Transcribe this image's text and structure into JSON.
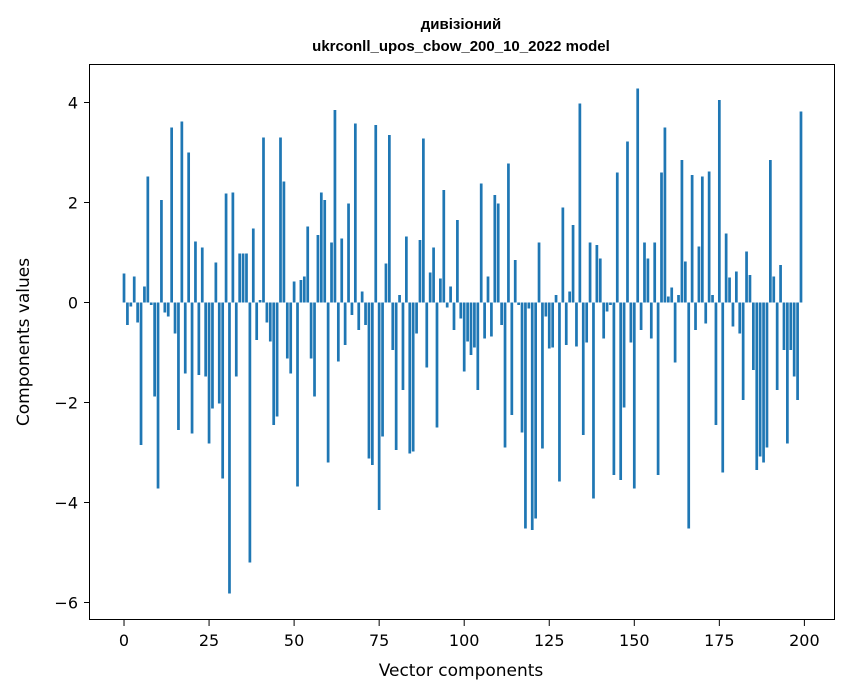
{
  "chart_data": {
    "type": "bar",
    "title_lines": [
      "дивізіоний",
      "ukrconll_upos_cbow_200_10_2022 model"
    ],
    "xlabel": "Vector components",
    "ylabel": "Components values",
    "xlim": [
      -10,
      209
    ],
    "ylim": [
      -6.35,
      4.75
    ],
    "xticks": [
      0,
      25,
      50,
      75,
      100,
      125,
      150,
      175,
      200
    ],
    "yticks": [
      -6,
      -4,
      -2,
      0,
      2,
      4
    ],
    "ytick_labels": [
      "−6",
      "−4",
      "−2",
      "0",
      "2",
      "4"
    ],
    "grid": false,
    "bar_color": "#1f77b4",
    "values": [
      0.58,
      -0.45,
      -0.08,
      0.52,
      -0.4,
      -2.85,
      0.32,
      2.52,
      -0.05,
      -1.88,
      -3.72,
      2.05,
      -0.2,
      -0.28,
      3.5,
      -0.62,
      -2.55,
      3.62,
      -1.42,
      3.0,
      -2.62,
      1.22,
      -1.45,
      1.1,
      -1.48,
      -2.82,
      -2.12,
      0.8,
      -2.02,
      -3.52,
      2.18,
      -5.82,
      2.2,
      -1.48,
      0.98,
      0.98,
      0.98,
      -5.2,
      1.48,
      -0.75,
      0.05,
      3.3,
      -0.4,
      -0.78,
      -2.45,
      -2.28,
      3.3,
      2.42,
      -1.12,
      -1.42,
      0.42,
      -3.68,
      0.45,
      0.52,
      1.52,
      -1.12,
      -1.88,
      1.35,
      2.2,
      2.05,
      -3.2,
      1.2,
      3.85,
      -1.18,
      1.28,
      -0.85,
      1.98,
      -0.25,
      3.58,
      -0.55,
      0.22,
      -0.45,
      -3.12,
      -3.25,
      3.55,
      -4.15,
      -2.68,
      0.78,
      3.35,
      -0.95,
      -2.95,
      0.15,
      -1.75,
      1.32,
      -3.02,
      -2.98,
      -0.62,
      1.25,
      3.28,
      -1.3,
      0.6,
      1.1,
      -2.5,
      0.48,
      2.25,
      -0.1,
      0.32,
      -0.55,
      1.65,
      -0.32,
      -1.38,
      -0.78,
      -1.05,
      -0.9,
      -1.75,
      2.38,
      -0.72,
      0.52,
      -0.68,
      2.15,
      1.98,
      -0.45,
      -2.9,
      2.78,
      -2.25,
      0.85,
      -0.05,
      -2.6,
      -4.52,
      -0.12,
      -4.55,
      -4.32,
      1.2,
      -2.92,
      -0.28,
      -0.92,
      -0.9,
      0.15,
      -3.58,
      1.9,
      -0.85,
      0.22,
      1.55,
      -0.88,
      3.98,
      -2.65,
      -0.8,
      1.2,
      -3.92,
      1.15,
      0.88,
      -0.72,
      -0.18,
      -0.05,
      -3.45,
      2.6,
      -3.55,
      -2.1,
      3.22,
      -0.8,
      -3.72,
      4.28,
      -0.55,
      1.2,
      0.88,
      -0.72,
      1.2,
      -3.45,
      2.6,
      3.5,
      0.12,
      0.3,
      -1.2,
      0.15,
      2.85,
      0.82,
      -4.52,
      2.55,
      -0.55,
      1.12,
      2.52,
      -0.42,
      2.62,
      0.15,
      -2.45,
      4.05,
      -3.4,
      1.38,
      0.5,
      -0.48,
      0.62,
      -0.62,
      -1.95,
      1.02,
      0.55,
      -1.35,
      -3.35,
      -3.08,
      -3.2,
      -2.9,
      2.85,
      0.52,
      -1.75,
      0.75,
      -0.95,
      -2.82,
      -0.95,
      -1.48,
      -1.95,
      3.82
    ]
  }
}
